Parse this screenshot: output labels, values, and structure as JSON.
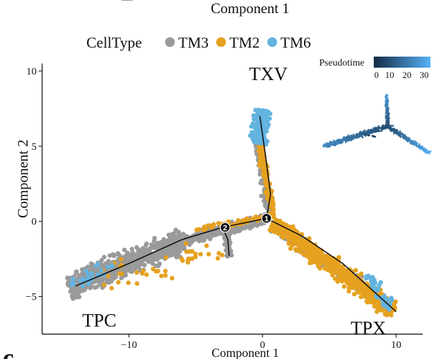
{
  "top_cut_label": "Component 1",
  "panel_letter": "c",
  "legend": {
    "title": "CellType",
    "items": [
      {
        "label": "TM3",
        "color": "#9a9a9a"
      },
      {
        "label": "TM2",
        "color": "#e5a11f"
      },
      {
        "label": "TM6",
        "color": "#63b3e0"
      }
    ]
  },
  "pseudotime_legend": {
    "title": "Pseudotime",
    "ticks": [
      "0",
      "10",
      "20",
      "30"
    ],
    "color_low": "#132b43",
    "color_high": "#56b1f7"
  },
  "chart_data": {
    "type": "scatter",
    "xlabel": "Component 1",
    "ylabel": "Component 2",
    "xlim": [
      -16.5,
      12
    ],
    "ylim": [
      -7.5,
      10.5
    ],
    "x_ticks": [
      -10,
      0,
      10
    ],
    "x_tick_labels": [
      "−10",
      "0",
      "10"
    ],
    "y_ticks": [
      -5,
      0,
      5,
      10
    ],
    "y_tick_labels": [
      "−5",
      "0",
      "5",
      "10"
    ],
    "grid": false,
    "trajectory": {
      "path": [
        [
          -14,
          -4.3
        ],
        [
          -10,
          -2.8
        ],
        [
          -6,
          -1.2
        ],
        [
          -3,
          -0.4
        ],
        [
          0.3,
          0.2
        ],
        [
          0.6,
          1.8
        ],
        [
          0.2,
          4.5
        ],
        [
          -0.2,
          7.0
        ]
      ],
      "branch_tpx": [
        [
          0.3,
          0.2
        ],
        [
          3,
          -1.0
        ],
        [
          6,
          -2.8
        ],
        [
          8.5,
          -4.8
        ],
        [
          10,
          -6.0
        ]
      ],
      "branch_node": [
        [
          -3,
          -0.4
        ],
        [
          -2.6,
          -1.2
        ],
        [
          -2.5,
          -2.3
        ]
      ]
    },
    "branch_points": [
      {
        "label": "1",
        "x": 0.3,
        "y": 0.2
      },
      {
        "label": "2",
        "x": -2.8,
        "y": -0.4
      }
    ],
    "cluster_labels": [
      {
        "label": "TXV",
        "x": -1.0,
        "y": 9.4
      },
      {
        "label": "TPC",
        "x": -13.5,
        "y": -7.0
      },
      {
        "label": "TPX",
        "x": 6.6,
        "y": -7.5
      }
    ],
    "series": [
      {
        "name": "TM3",
        "color": "#9a9a9a",
        "segments": [
          {
            "x0": -14.5,
            "y0": -4.4,
            "x1": -6,
            "y1": -1.3,
            "spread": 0.75,
            "n": 700
          },
          {
            "x0": -6,
            "y0": -1.3,
            "x1": 0.3,
            "y1": 0.2,
            "spread": 0.35,
            "n": 250
          },
          {
            "x0": -2.7,
            "y0": -0.5,
            "x1": -2.5,
            "y1": -2.3,
            "spread": 0.25,
            "n": 60
          },
          {
            "x0": 0.6,
            "y0": 0.3,
            "x1": -0.4,
            "y1": 5.4,
            "spread": 0.28,
            "n": 160
          },
          {
            "x0": 0.8,
            "y0": -0.2,
            "x1": 9.5,
            "y1": -5.6,
            "spread": 0.4,
            "n": 280
          }
        ]
      },
      {
        "name": "TM2",
        "color": "#e5a11f",
        "segments": [
          {
            "x0": 0.8,
            "y0": -0.1,
            "x1": 9.8,
            "y1": -6.0,
            "spread": 0.55,
            "n": 650
          },
          {
            "x0": 0.8,
            "y0": 0.3,
            "x1": -0.2,
            "y1": 5.2,
            "spread": 0.22,
            "n": 130
          },
          {
            "x0": -5,
            "y0": -0.5,
            "x1": 0.3,
            "y1": 0.3,
            "spread": 0.2,
            "n": 50
          },
          {
            "x0": -12,
            "y0": -4.0,
            "x1": -2.5,
            "y1": -1.8,
            "spread": 1.0,
            "n": 45
          }
        ]
      },
      {
        "name": "TM6",
        "color": "#63b3e0",
        "segments": [
          {
            "x0": -0.3,
            "y0": 5.2,
            "x1": 0.0,
            "y1": 7.4,
            "spread": 0.55,
            "n": 260
          },
          {
            "x0": 7.8,
            "y0": -3.6,
            "x1": 9.6,
            "y1": -5.8,
            "spread": 0.35,
            "n": 45
          },
          {
            "x0": -14.3,
            "y0": -4.2,
            "x1": -11,
            "y1": -2.8,
            "spread": 0.5,
            "n": 25
          }
        ]
      }
    ],
    "inset_trajectory": {
      "xlim": [
        -16.5,
        12
      ],
      "ylim": [
        -7.5,
        10.5
      ],
      "segments": [
        {
          "x0": -14.5,
          "y0": -4.4,
          "x1": 0.3,
          "y1": 0.2,
          "t0": 25,
          "t1": 9,
          "spread": 0.55,
          "n": 420
        },
        {
          "x0": 0.3,
          "y0": 0.2,
          "x1": -0.1,
          "y1": 7.2,
          "t0": 9,
          "t1": 30,
          "spread": 0.35,
          "n": 170
        },
        {
          "x0": 0.5,
          "y0": 0.0,
          "x1": 9.8,
          "y1": -6.0,
          "t0": 9,
          "t1": 35,
          "spread": 0.45,
          "n": 260
        },
        {
          "x0": -6,
          "y0": -1.3,
          "x1": -2.5,
          "y1": -2.3,
          "t0": 13,
          "t1": 5,
          "spread": 0.2,
          "n": 20
        }
      ]
    }
  }
}
